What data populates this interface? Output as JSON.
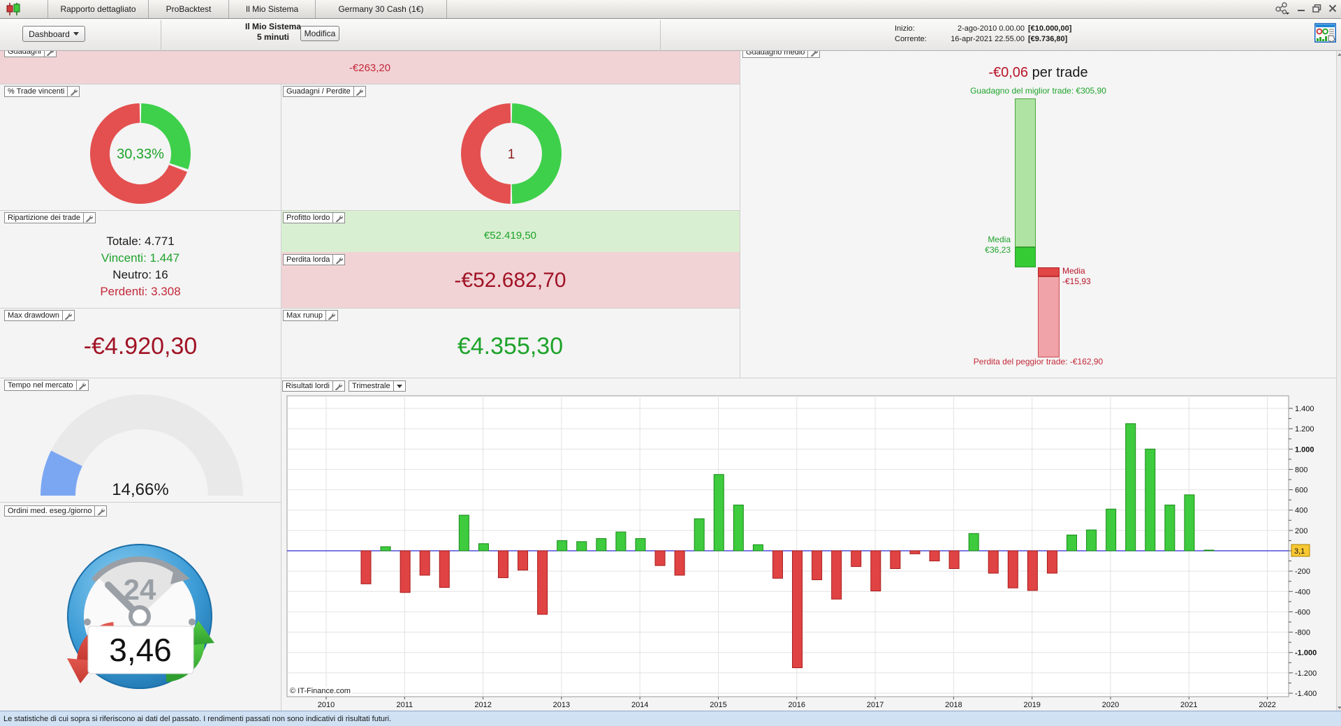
{
  "window": {
    "tabs": [
      "Rapporto dettagliato",
      "ProBacktest",
      "Il Mio Sistema",
      "Germany 30 Cash (1€)"
    ]
  },
  "toolbar": {
    "dashboard": "Dashboard",
    "system_name": "Il Mio Sistema",
    "timeframe": "5 minuti",
    "modifica": "Modifica",
    "inizio_label": "Inizio:",
    "inizio_date": "2-ago-2010 0.00.00",
    "inizio_amount": "[€10.000,00]",
    "corrente_label": "Corrente:",
    "corrente_date": "16-apr-2021 22.55.00",
    "corrente_amount": "[€9.736,80]"
  },
  "panels": {
    "guadagni": {
      "label": "Guadagni",
      "value": "-€263,20"
    },
    "trade_vincenti": {
      "label": "% Trade vincenti",
      "value": "30,33%",
      "win_pct": 30.33,
      "neutral_pct": 0.34
    },
    "guadagni_perdite": {
      "label": "Guadagni / Perdite",
      "value": "1",
      "loss_half_pct": 50,
      "win_half_pct": 50
    },
    "guadagno_medio": {
      "label": "Guadagno medio",
      "title_value": "-€0,06",
      "title_suffix": " per trade",
      "best_label": "Guadagno del miglior trade: €305,90",
      "worst_label": "Perdita del peggior trade: -€162,90",
      "media_win_label": "Media",
      "media_win_value": "€36,23",
      "media_loss_label": "Media",
      "media_loss_value": "-€15,93",
      "best": 305.9,
      "avg_win": 36.23,
      "avg_loss": -15.93,
      "worst": -162.9
    },
    "ripartizione": {
      "label": "Ripartizione dei trade",
      "rows": [
        {
          "text": "Totale: 4.771",
          "color": "#1a1a1a"
        },
        {
          "text": "Vincenti: 1.447",
          "color": "#1ea32b"
        },
        {
          "text": "Neutro: 16",
          "color": "#1a1a1a"
        },
        {
          "text": "Perdenti: 3.308",
          "color": "#c22838"
        }
      ]
    },
    "profitto_lordo": {
      "label": "Profitto lordo",
      "value": "€52.419,50"
    },
    "perdita_lorda": {
      "label": "Perdita lorda",
      "value": "-€52.682,70"
    },
    "max_drawdown": {
      "label": "Max drawdown",
      "value": "-€4.920,30"
    },
    "max_runup": {
      "label": "Max runup",
      "value": "€4.355,30"
    },
    "tempo_mercato": {
      "label": "Tempo nel mercato",
      "value": "14,66%",
      "pct": 14.66
    },
    "ordini": {
      "label": "Ordini med. eseg./giorno",
      "value": "3,46",
      "clock_label": "24"
    },
    "risultati": {
      "label": "Risultati lordi",
      "period": "Trimestrale",
      "copyright": "© IT-Finance.com"
    }
  },
  "chart_data": {
    "type": "bar",
    "title": "Risultati lordi (Trimestrale)",
    "categories": [
      "2010-Q3",
      "2010-Q4",
      "2011-Q1",
      "2011-Q2",
      "2011-Q3",
      "2011-Q4",
      "2012-Q1",
      "2012-Q2",
      "2012-Q3",
      "2012-Q4",
      "2013-Q1",
      "2013-Q2",
      "2013-Q3",
      "2013-Q4",
      "2014-Q1",
      "2014-Q2",
      "2014-Q3",
      "2014-Q4",
      "2015-Q1",
      "2015-Q2",
      "2015-Q3",
      "2015-Q4",
      "2016-Q1",
      "2016-Q2",
      "2016-Q3",
      "2016-Q4",
      "2017-Q1",
      "2017-Q2",
      "2017-Q3",
      "2017-Q4",
      "2018-Q1",
      "2018-Q2",
      "2018-Q3",
      "2018-Q4",
      "2019-Q1",
      "2019-Q2",
      "2019-Q3",
      "2019-Q4",
      "2020-Q1",
      "2020-Q2",
      "2020-Q3",
      "2020-Q4",
      "2021-Q1",
      "2021-Q2"
    ],
    "values": [
      -325,
      40,
      -410,
      -240,
      -360,
      350,
      70,
      -265,
      -190,
      -625,
      100,
      90,
      120,
      185,
      120,
      -145,
      -240,
      315,
      750,
      450,
      60,
      -270,
      -1150,
      -285,
      -475,
      -155,
      -395,
      -175,
      -30,
      -100,
      -175,
      170,
      -220,
      -365,
      -390,
      -220,
      155,
      205,
      410,
      1250,
      1000,
      450,
      550,
      3
    ],
    "year_labels": [
      "2010",
      "2011",
      "2012",
      "2013",
      "2014",
      "2015",
      "2016",
      "2017",
      "2018",
      "2019",
      "2020",
      "2021",
      "2022"
    ],
    "ylim": [
      -1400,
      1400
    ],
    "ytick_step": 200,
    "bold_ticks": [
      1000,
      -1000
    ],
    "zero_label": "3,1",
    "last_value": 3.1,
    "grid": true,
    "legend": "none",
    "xlabel": "",
    "ylabel": ""
  },
  "colors": {
    "bar_green": "#3ecb3e",
    "bar_green_border": "#168a16",
    "bar_red": "#e04343",
    "bar_red_border": "#a81c1c",
    "donut_green": "#3ed04b",
    "donut_red": "#e3504f",
    "zero_line": "#2a2ad2",
    "grid_line": "#e2e2e2",
    "highlight_yellow": "#f8c832",
    "gauge_blue": "#7ba7f2",
    "gauge_track": "#e9e9e9",
    "win_green": "#1ea32b",
    "loss_red": "#c22838"
  },
  "status_bar": "Le statistiche di cui sopra si riferiscono ai dati del passato. I rendimenti passati non sono indicativi di risultati futuri."
}
